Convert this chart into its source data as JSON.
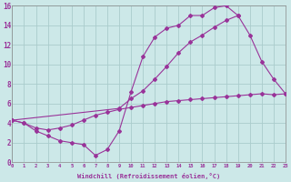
{
  "xlabel": "Windchill (Refroidissement éolien,°C)",
  "bg_color": "#cce8e8",
  "grid_color": "#aacccc",
  "line_color": "#993399",
  "xlim": [
    0,
    23
  ],
  "ylim": [
    0,
    16
  ],
  "xtick_labels": [
    "0",
    "1",
    "2",
    "3",
    "4",
    "5",
    "6",
    "7",
    "8",
    "9",
    "10",
    "11",
    "12",
    "13",
    "14",
    "15",
    "16",
    "17",
    "18",
    "19",
    "20",
    "21",
    "22",
    "23"
  ],
  "ytick_labels": [
    "0",
    "2",
    "4",
    "6",
    "8",
    "10",
    "12",
    "14",
    "16"
  ],
  "series1": [
    [
      0,
      4.3
    ],
    [
      1,
      4.0
    ],
    [
      2,
      3.2
    ],
    [
      3,
      2.7
    ],
    [
      4,
      2.2
    ],
    [
      5,
      2.0
    ],
    [
      6,
      1.8
    ],
    [
      7,
      0.7
    ],
    [
      8,
      1.3
    ],
    [
      9,
      3.2
    ],
    [
      10,
      7.2
    ],
    [
      11,
      10.8
    ],
    [
      12,
      12.8
    ],
    [
      13,
      13.7
    ],
    [
      14,
      14.0
    ],
    [
      15,
      15.0
    ],
    [
      16,
      15.0
    ],
    [
      17,
      15.8
    ],
    [
      18,
      16.0
    ],
    [
      19,
      15.0
    ]
  ],
  "series2": [
    [
      0,
      4.3
    ],
    [
      9,
      5.5
    ],
    [
      10,
      6.5
    ],
    [
      11,
      7.3
    ],
    [
      12,
      8.5
    ],
    [
      13,
      9.8
    ],
    [
      14,
      11.2
    ],
    [
      15,
      12.3
    ],
    [
      16,
      13.0
    ],
    [
      17,
      13.8
    ],
    [
      18,
      14.5
    ],
    [
      19,
      15.0
    ],
    [
      20,
      13.0
    ],
    [
      21,
      10.3
    ],
    [
      22,
      8.5
    ],
    [
      23,
      7.0
    ]
  ],
  "series3": [
    [
      0,
      4.3
    ],
    [
      1,
      4.0
    ],
    [
      2,
      3.5
    ],
    [
      3,
      3.3
    ],
    [
      4,
      3.5
    ],
    [
      5,
      3.8
    ],
    [
      6,
      4.3
    ],
    [
      7,
      4.8
    ],
    [
      8,
      5.1
    ],
    [
      9,
      5.4
    ],
    [
      10,
      5.6
    ],
    [
      11,
      5.8
    ],
    [
      12,
      6.0
    ],
    [
      13,
      6.2
    ],
    [
      14,
      6.3
    ],
    [
      15,
      6.4
    ],
    [
      16,
      6.5
    ],
    [
      17,
      6.6
    ],
    [
      18,
      6.7
    ],
    [
      19,
      6.8
    ],
    [
      20,
      6.9
    ],
    [
      21,
      7.0
    ],
    [
      22,
      6.9
    ],
    [
      23,
      7.0
    ]
  ]
}
